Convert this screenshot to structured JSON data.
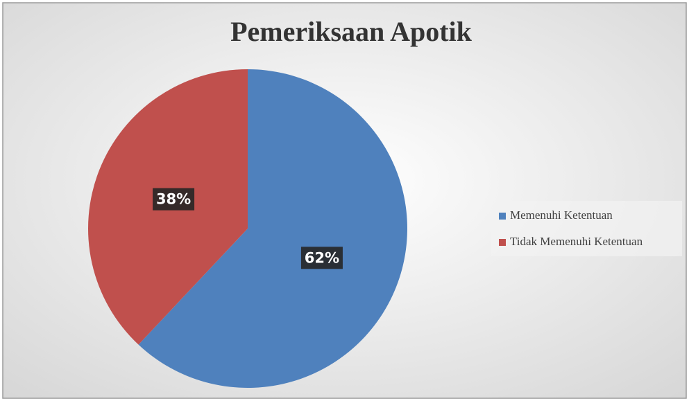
{
  "chart_data": {
    "type": "pie",
    "title": "Pemeriksaan Apotik",
    "categories": [
      "Memenuhi Ketentuan",
      "Tidak Memenuhi Ketentuan"
    ],
    "values": [
      62,
      38
    ],
    "value_labels": [
      "62%",
      "38%"
    ],
    "colors": [
      "#4f81bd",
      "#c0504d"
    ],
    "legend": "right"
  }
}
